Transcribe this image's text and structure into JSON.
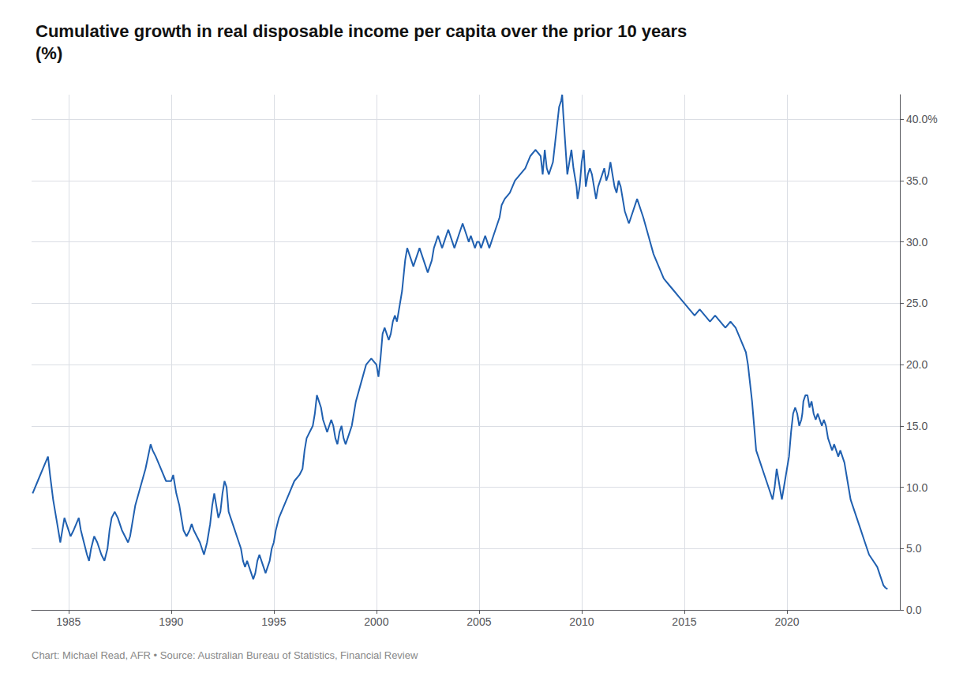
{
  "chart_data": {
    "type": "line",
    "title": "Cumulative growth in real disposable income per capita over the prior 10 years\n(%)",
    "annotations": [
      "Chart: Michael Read, AFR • Source: Australian Bureau of Statistics, Financial Review"
    ],
    "color": "#2060b0",
    "grid": true,
    "xlim": [
      1983.2,
      2025.5
    ],
    "xticks": [
      1985,
      1990,
      1995,
      2000,
      2005,
      2010,
      2015,
      2020
    ],
    "ylim": [
      0.0,
      42.0
    ],
    "yticks": [
      {
        "value": 0.0,
        "label": "0.0"
      },
      {
        "value": 5.0,
        "label": "5.0"
      },
      {
        "value": 10.0,
        "label": "10.0"
      },
      {
        "value": 15.0,
        "label": "15.0"
      },
      {
        "value": 20.0,
        "label": "20.0"
      },
      {
        "value": 25.0,
        "label": "25.0"
      },
      {
        "value": 30.0,
        "label": "30.0"
      },
      {
        "value": 35.0,
        "label": "35.0"
      },
      {
        "value": 40.0,
        "label": "40.0%"
      }
    ],
    "x": [
      1983.25,
      1983.5,
      1983.75,
      1984.0,
      1984.1,
      1984.25,
      1984.4,
      1984.5,
      1984.6,
      1984.7,
      1984.8,
      1984.9,
      1985.0,
      1985.1,
      1985.25,
      1985.5,
      1985.6,
      1985.75,
      1985.9,
      1986.0,
      1986.1,
      1986.25,
      1986.4,
      1986.5,
      1986.6,
      1986.75,
      1986.9,
      1987.0,
      1987.1,
      1987.25,
      1987.4,
      1987.5,
      1987.6,
      1987.75,
      1987.9,
      1988.0,
      1988.1,
      1988.25,
      1988.5,
      1988.75,
      1989.0,
      1989.1,
      1989.25,
      1989.5,
      1989.75,
      1990.0,
      1990.1,
      1990.25,
      1990.4,
      1990.5,
      1990.6,
      1990.75,
      1990.9,
      1991.0,
      1991.1,
      1991.25,
      1991.4,
      1991.5,
      1991.6,
      1991.75,
      1991.9,
      1992.0,
      1992.1,
      1992.2,
      1992.3,
      1992.4,
      1992.5,
      1992.6,
      1992.7,
      1992.75,
      1992.8,
      1992.9,
      1993.0,
      1993.1,
      1993.2,
      1993.3,
      1993.4,
      1993.5,
      1993.6,
      1993.7,
      1993.8,
      1993.9,
      1994.0,
      1994.1,
      1994.2,
      1994.3,
      1994.4,
      1994.5,
      1994.6,
      1994.7,
      1994.8,
      1994.9,
      1995.0,
      1995.1,
      1995.25,
      1995.5,
      1995.75,
      1996.0,
      1996.25,
      1996.4,
      1996.5,
      1996.6,
      1996.75,
      1996.9,
      1997.0,
      1997.1,
      1997.2,
      1997.3,
      1997.4,
      1997.5,
      1997.6,
      1997.7,
      1997.8,
      1997.9,
      1998.0,
      1998.1,
      1998.2,
      1998.3,
      1998.4,
      1998.5,
      1998.6,
      1998.7,
      1998.8,
      1998.9,
      1999.0,
      1999.25,
      1999.5,
      1999.75,
      2000.0,
      2000.1,
      2000.2,
      2000.3,
      2000.4,
      2000.5,
      2000.6,
      2000.7,
      2000.8,
      2000.9,
      2001.0,
      2001.1,
      2001.25,
      2001.4,
      2001.5,
      2001.6,
      2001.7,
      2001.8,
      2001.9,
      2002.0,
      2002.1,
      2002.2,
      2002.3,
      2002.4,
      2002.5,
      2002.6,
      2002.7,
      2002.8,
      2002.9,
      2003.0,
      2003.1,
      2003.2,
      2003.3,
      2003.4,
      2003.5,
      2003.6,
      2003.7,
      2003.8,
      2003.9,
      2004.0,
      2004.1,
      2004.2,
      2004.3,
      2004.4,
      2004.5,
      2004.6,
      2004.7,
      2004.8,
      2004.9,
      2005.0,
      2005.1,
      2005.2,
      2005.3,
      2005.4,
      2005.5,
      2005.6,
      2005.7,
      2005.8,
      2005.9,
      2006.0,
      2006.1,
      2006.25,
      2006.5,
      2006.75,
      2007.0,
      2007.25,
      2007.5,
      2007.75,
      2008.0,
      2008.1,
      2008.2,
      2008.3,
      2008.4,
      2008.5,
      2008.6,
      2008.7,
      2008.8,
      2008.9,
      2009.0,
      2009.05,
      2009.1,
      2009.2,
      2009.3,
      2009.4,
      2009.5,
      2009.6,
      2009.7,
      2009.75,
      2009.8,
      2009.9,
      2010.0,
      2010.1,
      2010.15,
      2010.2,
      2010.3,
      2010.4,
      2010.5,
      2010.6,
      2010.7,
      2010.8,
      2010.9,
      2011.0,
      2011.1,
      2011.15,
      2011.2,
      2011.3,
      2011.4,
      2011.45,
      2011.5,
      2011.6,
      2011.7,
      2011.75,
      2011.8,
      2011.9,
      2012.0,
      2012.1,
      2012.2,
      2012.3,
      2012.4,
      2012.5,
      2012.6,
      2012.7,
      2012.8,
      2012.9,
      2013.0,
      2013.25,
      2013.5,
      2013.75,
      2014.0,
      2014.25,
      2014.5,
      2014.75,
      2015.0,
      2015.25,
      2015.5,
      2015.75,
      2016.0,
      2016.25,
      2016.5,
      2016.75,
      2017.0,
      2017.25,
      2017.5,
      2017.75,
      2018.0,
      2018.1,
      2018.2,
      2018.3,
      2018.4,
      2018.5,
      2018.6,
      2018.7,
      2018.8,
      2018.9,
      2019.0,
      2019.1,
      2019.2,
      2019.3,
      2019.4,
      2019.5,
      2019.6,
      2019.7,
      2019.75,
      2019.8,
      2019.9,
      2020.0,
      2020.1,
      2020.2,
      2020.3,
      2020.4,
      2020.5,
      2020.6,
      2020.7,
      2020.75,
      2020.8,
      2020.9,
      2021.0,
      2021.1,
      2021.2,
      2021.3,
      2021.4,
      2021.5,
      2021.6,
      2021.7,
      2021.8,
      2021.9,
      2022.0,
      2022.1,
      2022.2,
      2022.3,
      2022.4,
      2022.5,
      2022.6,
      2022.7,
      2022.8,
      2022.9,
      2023.0,
      2023.1,
      2023.2,
      2023.3,
      2023.4,
      2023.5,
      2023.6,
      2023.7,
      2023.8,
      2023.9,
      2024.0,
      2024.2,
      2024.4,
      2024.5,
      2024.6,
      2024.7,
      2024.8,
      2024.9
    ],
    "values": [
      9.5,
      10.5,
      11.5,
      12.5,
      11.0,
      9.0,
      7.5,
      6.5,
      5.5,
      6.5,
      7.5,
      7.0,
      6.5,
      6.0,
      6.5,
      7.5,
      6.5,
      5.5,
      4.5,
      4.0,
      5.0,
      6.0,
      5.5,
      5.0,
      4.5,
      4.0,
      5.0,
      6.5,
      7.5,
      8.0,
      7.5,
      7.0,
      6.5,
      6.0,
      5.5,
      6.0,
      7.0,
      8.5,
      10.0,
      11.5,
      13.5,
      13.0,
      12.5,
      11.5,
      10.5,
      10.5,
      11.0,
      9.5,
      8.5,
      7.5,
      6.5,
      6.0,
      6.5,
      7.0,
      6.5,
      6.0,
      5.5,
      5.0,
      4.5,
      5.5,
      7.0,
      8.5,
      9.5,
      8.5,
      7.5,
      8.0,
      9.5,
      10.5,
      10.0,
      9.0,
      8.0,
      7.5,
      7.0,
      6.5,
      6.0,
      5.5,
      5.0,
      4.0,
      3.5,
      4.0,
      3.5,
      3.0,
      2.5,
      3.0,
      4.0,
      4.5,
      4.0,
      3.5,
      3.0,
      3.5,
      4.0,
      5.0,
      5.5,
      6.5,
      7.5,
      8.5,
      9.5,
      10.5,
      11.0,
      11.5,
      13.0,
      14.0,
      14.5,
      15.0,
      16.0,
      17.5,
      17.0,
      16.5,
      15.5,
      15.0,
      14.5,
      15.0,
      15.5,
      15.0,
      14.0,
      13.5,
      14.5,
      15.0,
      14.0,
      13.5,
      14.0,
      14.5,
      15.0,
      16.0,
      17.0,
      18.5,
      20.0,
      20.5,
      20.0,
      19.0,
      20.5,
      22.5,
      23.0,
      22.5,
      22.0,
      22.5,
      23.5,
      24.0,
      23.5,
      24.5,
      26.0,
      28.5,
      29.5,
      29.0,
      28.5,
      28.0,
      28.5,
      29.0,
      29.5,
      29.0,
      28.5,
      28.0,
      27.5,
      28.0,
      28.5,
      29.5,
      30.0,
      30.5,
      30.0,
      29.5,
      30.0,
      30.5,
      31.0,
      30.5,
      30.0,
      29.5,
      30.0,
      30.5,
      31.0,
      31.5,
      31.0,
      30.5,
      30.0,
      30.5,
      30.0,
      29.5,
      30.0,
      30.0,
      29.5,
      30.0,
      30.5,
      30.0,
      29.5,
      30.0,
      30.5,
      31.0,
      31.5,
      32.0,
      33.0,
      33.5,
      34.0,
      35.0,
      35.5,
      36.0,
      37.0,
      37.5,
      37.0,
      35.5,
      37.5,
      36.0,
      35.5,
      36.0,
      36.5,
      38.0,
      39.5,
      41.0,
      41.5,
      42.0,
      40.5,
      38.0,
      35.5,
      36.5,
      37.5,
      36.0,
      35.0,
      34.5,
      33.5,
      34.5,
      36.5,
      37.5,
      36.0,
      34.5,
      35.5,
      36.0,
      35.5,
      34.5,
      33.5,
      34.5,
      35.0,
      35.5,
      36.0,
      35.5,
      35.0,
      35.5,
      36.5,
      36.0,
      35.5,
      34.5,
      34.0,
      34.5,
      35.0,
      34.5,
      33.5,
      32.5,
      32.0,
      31.5,
      32.0,
      32.5,
      33.0,
      33.5,
      33.0,
      32.5,
      32.0,
      30.5,
      29.0,
      28.0,
      27.0,
      26.5,
      26.0,
      25.5,
      25.0,
      24.5,
      24.0,
      24.5,
      24.0,
      23.5,
      24.0,
      23.5,
      23.0,
      23.5,
      23.0,
      22.0,
      21.0,
      20.0,
      18.5,
      17.0,
      15.0,
      13.0,
      12.5,
      12.0,
      11.5,
      11.0,
      10.5,
      10.0,
      9.5,
      9.0,
      10.0,
      11.5,
      10.5,
      9.5,
      9.0,
      9.5,
      10.5,
      11.5,
      12.5,
      14.5,
      16.0,
      16.5,
      16.0,
      15.0,
      15.5,
      16.0,
      17.0,
      17.5,
      17.5,
      16.5,
      17.0,
      16.0,
      15.5,
      16.0,
      15.5,
      15.0,
      15.5,
      15.0,
      14.0,
      13.5,
      13.0,
      13.5,
      13.0,
      12.5,
      13.0,
      12.5,
      12.0,
      11.0,
      10.0,
      9.0,
      8.5,
      8.0,
      7.5,
      7.0,
      6.5,
      6.0,
      5.5,
      5.0,
      4.5,
      4.0,
      3.5,
      3.0,
      2.5,
      2.0,
      1.8,
      1.7
    ]
  }
}
